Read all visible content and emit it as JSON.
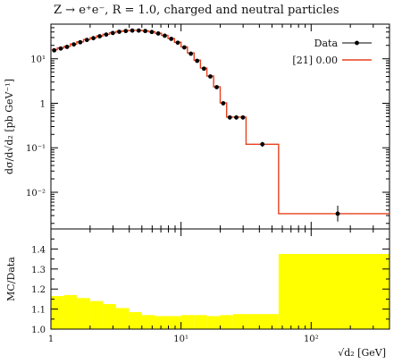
{
  "title": "Z → e⁺e⁻, R = 1.0, charged and neutral particles",
  "chart_data": [
    {
      "type": "line",
      "panel": "main",
      "xscale": "log",
      "yscale": "log",
      "xlim": [
        1,
        400
      ],
      "ylim": [
        0.0015,
        60
      ],
      "ylabel": "dσ/d√d₂ [pb GeV⁻¹]",
      "ytick_labels": [
        "10⁻²",
        "10⁻¹",
        "1",
        "10¹"
      ],
      "legend_position": "top-right",
      "series": [
        {
          "name": "Data",
          "kind": "points-with-errorbars",
          "color": "#000000",
          "x": [
            1.06,
            1.19,
            1.33,
            1.5,
            1.68,
            1.89,
            2.12,
            2.37,
            2.66,
            2.99,
            3.35,
            3.76,
            4.22,
            4.73,
            5.31,
            5.96,
            6.68,
            7.5,
            8.41,
            9.44,
            10.6,
            11.9,
            13.3,
            15.0,
            16.8,
            18.8,
            21.1,
            23.7,
            26.6,
            29.9,
            42.2,
            160.0
          ],
          "y": [
            15.5,
            17.0,
            18.5,
            21.0,
            23.5,
            26.5,
            29.0,
            32.0,
            35.0,
            38.0,
            40.5,
            42.0,
            43.0,
            43.0,
            42.0,
            40.0,
            37.0,
            33.0,
            28.0,
            23.0,
            18.0,
            13.0,
            9.0,
            6.0,
            4.0,
            2.3,
            1.0,
            0.48,
            0.48,
            0.48,
            0.12,
            0.0033
          ],
          "yerr_low": [
            1.5,
            1.2,
            1.0,
            1.2,
            1.2,
            1.2,
            1.2,
            1.2,
            1.2,
            1.2,
            1.2,
            1.2,
            1.2,
            1.2,
            1.2,
            1.2,
            1.2,
            1.2,
            1.2,
            1.2,
            1.0,
            0.8,
            0.6,
            0.4,
            0.3,
            0.2,
            0.1,
            0.05,
            0.05,
            0.05,
            0.015,
            0.0011
          ],
          "yerr_high": [
            1.5,
            1.2,
            1.0,
            1.2,
            1.2,
            1.2,
            1.2,
            1.2,
            1.2,
            1.2,
            1.2,
            1.2,
            1.2,
            1.2,
            1.2,
            1.2,
            1.2,
            1.2,
            1.2,
            1.2,
            1.0,
            0.8,
            0.6,
            0.4,
            0.3,
            0.2,
            0.1,
            0.05,
            0.05,
            0.05,
            0.015,
            0.0017
          ]
        },
        {
          "name": "[21] 0.00",
          "kind": "step",
          "color": "#e8401c",
          "bin_edges": [
            1.0,
            1.12,
            1.26,
            1.41,
            1.58,
            1.78,
            2.0,
            2.24,
            2.51,
            2.82,
            3.16,
            3.55,
            3.98,
            4.47,
            5.01,
            5.62,
            6.31,
            7.08,
            7.94,
            8.91,
            10.0,
            11.2,
            12.6,
            14.1,
            15.8,
            17.8,
            20.0,
            22.4,
            25.1,
            28.2,
            31.6,
            56.2,
            400.0
          ],
          "values": [
            16.0,
            17.5,
            19.0,
            21.5,
            24.0,
            27.0,
            29.5,
            32.5,
            35.5,
            38.5,
            41.0,
            42.5,
            43.5,
            43.5,
            42.5,
            40.5,
            37.5,
            33.5,
            28.5,
            23.5,
            18.5,
            13.5,
            9.3,
            6.2,
            4.1,
            2.35,
            1.02,
            0.49,
            0.49,
            0.49,
            0.12,
            0.0033
          ]
        }
      ]
    },
    {
      "type": "area",
      "panel": "ratio",
      "xscale": "log",
      "xlim": [
        1,
        400
      ],
      "ylim": [
        1.0,
        1.5
      ],
      "ylabel": "MC/Data",
      "xlabel": "√d₂ [GeV]",
      "xtick_labels": [
        "1",
        "10¹",
        "10²"
      ],
      "ytick_labels": [
        "1.0",
        "1.1",
        "1.2",
        "1.3",
        "1.4"
      ],
      "series": [
        {
          "name": "",
          "kind": "band",
          "color": "#ffff00",
          "bin_edges": [
            1.0,
            1.26,
            1.58,
            2.0,
            2.51,
            3.16,
            3.98,
            5.01,
            6.31,
            7.94,
            10.0,
            12.6,
            15.8,
            20.0,
            25.1,
            31.6,
            56.2,
            400.0
          ],
          "lower": [
            0.835,
            0.83,
            0.845,
            0.86,
            0.875,
            0.895,
            0.915,
            0.93,
            0.935,
            0.935,
            0.93,
            0.93,
            0.935,
            0.93,
            0.925,
            0.925,
            0.625
          ],
          "upper": [
            1.165,
            1.17,
            1.155,
            1.14,
            1.125,
            1.105,
            1.085,
            1.07,
            1.065,
            1.065,
            1.07,
            1.07,
            1.065,
            1.07,
            1.075,
            1.075,
            1.375
          ]
        }
      ]
    }
  ]
}
